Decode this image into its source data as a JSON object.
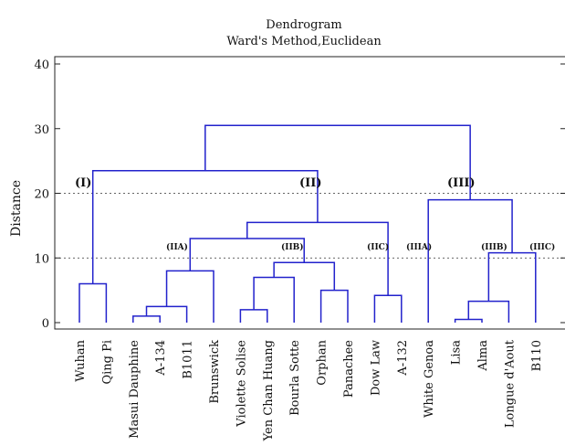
{
  "chart_data": {
    "type": "dendrogram",
    "title": "Dendrogram",
    "subtitle": "Ward's Method,Euclidean",
    "ylabel": "Distance",
    "ylim": [
      0,
      40
    ],
    "yticks": [
      0,
      10,
      20,
      30,
      40
    ],
    "leaves": [
      "Wuhan",
      "Qing Pi",
      "Masui Dauphine",
      "A-134",
      "B1011",
      "Brunswick",
      "Violette Solise",
      "Yen Chan Huang",
      "Bourla Sotte",
      "Orphan",
      "Panachee",
      "Dow Law",
      "A-132",
      "White Genoa",
      "Lisa",
      "Alma",
      "Longue d'Aout",
      "B110"
    ],
    "merges": [
      {
        "left": 0,
        "right": 1,
        "height": 6
      },
      {
        "left": 2,
        "right": 3,
        "height": 1
      },
      {
        "left": 19,
        "right": 4,
        "height": 2.5
      },
      {
        "left": 20,
        "right": 5,
        "height": 8
      },
      {
        "left": 6,
        "right": 7,
        "height": 2
      },
      {
        "left": 22,
        "right": 8,
        "height": 7
      },
      {
        "left": 9,
        "right": 10,
        "height": 5
      },
      {
        "left": 23,
        "right": 24,
        "height": 9.3
      },
      {
        "left": 21,
        "right": 25,
        "height": 13
      },
      {
        "left": 11,
        "right": 12,
        "height": 4.2
      },
      {
        "left": 26,
        "right": 27,
        "height": 15.5
      },
      {
        "left": 14,
        "right": 15,
        "height": 0.5
      },
      {
        "left": 29,
        "right": 16,
        "height": 3.3
      },
      {
        "left": 30,
        "right": 17,
        "height": 10.8
      },
      {
        "left": 13,
        "right": 31,
        "height": 19
      },
      {
        "left": 18,
        "right": 28,
        "height": 23.5
      },
      {
        "left": 33,
        "right": 32,
        "height": 30.5
      }
    ],
    "reference_lines": [
      10,
      20
    ],
    "cluster_labels": [
      {
        "text": "(I)",
        "at": 20
      },
      {
        "text": "(II)",
        "at": 20
      },
      {
        "text": "(III)",
        "at": 20
      }
    ],
    "subcluster_labels": [
      {
        "text": "(IIA)",
        "at": 12
      },
      {
        "text": "(IIB)",
        "at": 12
      },
      {
        "text": "(IIC)",
        "at": 12
      },
      {
        "text": "(IIIA)",
        "at": 12
      },
      {
        "text": "(IIIB)",
        "at": 12
      },
      {
        "text": "(IIIC)",
        "at": 12
      }
    ],
    "colors": {
      "branches": "#2222cc",
      "frame": "#222222"
    }
  }
}
